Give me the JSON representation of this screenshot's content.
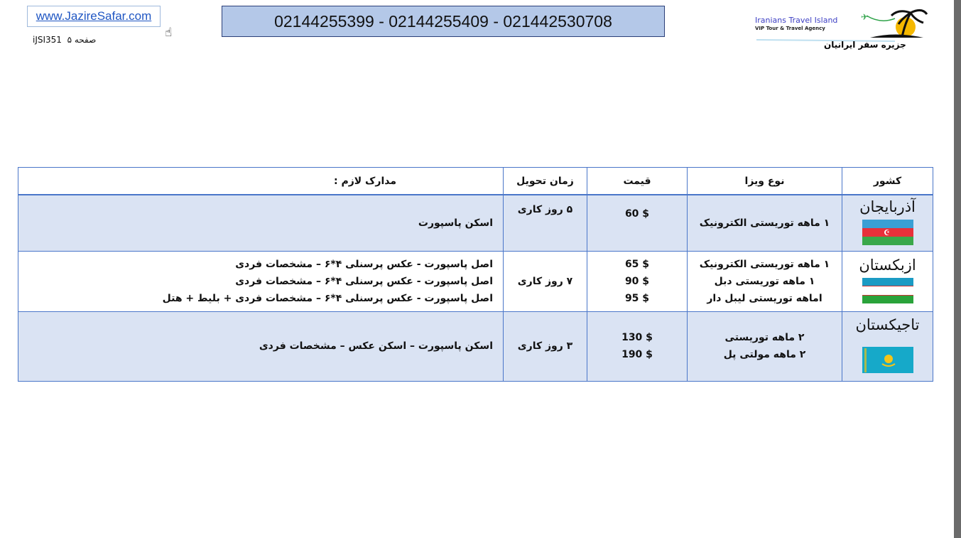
{
  "header": {
    "website": "www.JazireSafar.com",
    "page_label": "صفحه ۵",
    "page_code": "iJSI351",
    "phones": "02144255399 - 02144255409 - 021442530708",
    "logo": {
      "title_en": "Iranians Travel Island",
      "subtitle_en": "VIP Tour & Travel Agency",
      "title_fa": "جزیره سفر ایرانیان"
    }
  },
  "table": {
    "headers": {
      "country": "کشور",
      "visa_type": "نوع ویزا",
      "price": "قیمت",
      "delivery": "زمان تحویل",
      "documents": "مدارک لازم :"
    },
    "rows": [
      {
        "country": "آذربایجان",
        "flag": "azerbaijan-flag",
        "types": [
          "۱ ماهه توریستی الکترونیک"
        ],
        "prices": [
          "60 $"
        ],
        "delivery": "۵ روز کاری",
        "documents": [
          "اسکن پاسپورت"
        ]
      },
      {
        "country": "ازبکستان",
        "flag": "uzbekistan-flag",
        "types": [
          "۱ ماهه توریستی  الکترونیک",
          "۱ ماهه توریستی دبل",
          "اماهه توریستی لیبل دار"
        ],
        "prices": [
          "65 $",
          "90 $",
          "95 $"
        ],
        "delivery": "۷ روز کاری",
        "documents": [
          "اصل پاسپورت -  عکس پرسنلی ۴*۶ – مشخصات فردی",
          "اصل پاسپورت -  عکس پرسنلی ۴*۶ – مشخصات فردی",
          "اصل پاسپورت -  عکس پرسنلی ۴*۶ – مشخصات فردی + بلیط + هتل"
        ]
      },
      {
        "country": "تاجیکستان",
        "flag": "kazakhstan-flag",
        "types": [
          "۲ ماهه توریستی",
          "۲ ماهه مولتی پل"
        ],
        "prices": [
          "130 $",
          "190 $"
        ],
        "delivery": "۳ روز کاری",
        "documents": [
          "اسکن پاسپورت – اسکن عکس – مشخصات فردی"
        ]
      }
    ]
  },
  "colors": {
    "border": "#4a76c9",
    "shade": "#dae3f3",
    "phone_bg": "#b4c8e8"
  }
}
